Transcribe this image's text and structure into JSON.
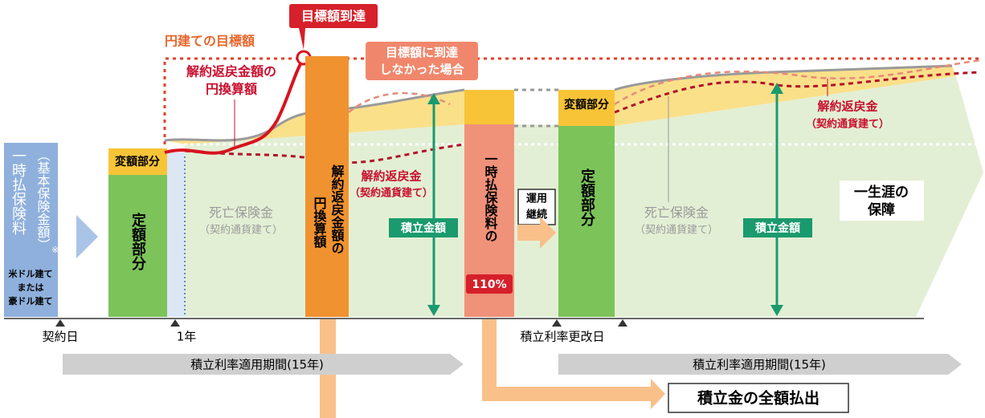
{
  "goal_reached": "目標額到達",
  "yen_target": "円建ての目標額",
  "yen_conversion_label": [
    "解約返戻金額の",
    "円換算額"
  ],
  "not_reached": [
    "目標額に到達",
    "しなかった場合"
  ],
  "premium_box": {
    "title": "一時払保険料",
    "sub": "（基本保険金額）",
    "note": "※",
    "currency": [
      "米ドル建て",
      "または",
      "豪ドル建て"
    ]
  },
  "variable_part": [
    "変額部分",
    "変額部分"
  ],
  "fixed_part": [
    "定額部分",
    "定額部分"
  ],
  "death_benefit": [
    [
      "死亡保険金",
      "（契約通貨建て）"
    ],
    [
      "死亡保険金",
      "（契約通貨建て）"
    ]
  ],
  "surrender": [
    [
      "解約返戻金",
      "（契約通貨建て）"
    ],
    [
      "解約返戻金",
      "（契約通貨建て）"
    ]
  ],
  "orange_bar": [
    "解約返戻金額の",
    "円換算額"
  ],
  "accumulation": [
    "積立金額",
    "積立金額"
  ],
  "premium_ratio": {
    "text": "一時払保険料の",
    "badge": "110%"
  },
  "continue": [
    "運用",
    "継続"
  ],
  "lifetime": [
    "一生涯の",
    "保障"
  ],
  "timeline": [
    "契約日",
    "1年",
    "積立利率更改日"
  ],
  "periods": [
    "積立利率適用期間(15年)",
    "積立利率適用期間(15年)"
  ],
  "payout": "積立金の全額払出"
}
